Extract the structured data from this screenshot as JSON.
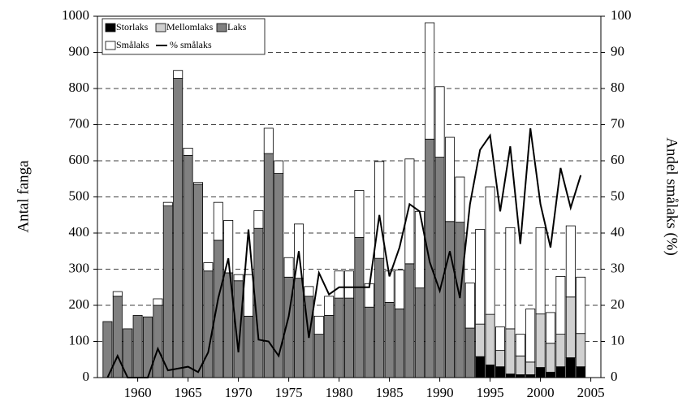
{
  "chart_data": {
    "type": "bar",
    "stacked": true,
    "y_label": "Antal fanga",
    "y2_label": "Andel smålaks (%)",
    "x": [
      1957,
      1958,
      1959,
      1960,
      1961,
      1962,
      1963,
      1964,
      1965,
      1966,
      1967,
      1968,
      1969,
      1970,
      1971,
      1972,
      1973,
      1974,
      1975,
      1976,
      1977,
      1978,
      1979,
      1980,
      1981,
      1982,
      1983,
      1984,
      1985,
      1986,
      1987,
      1988,
      1989,
      1990,
      1991,
      1992,
      1993,
      1994,
      1995,
      1996,
      1997,
      1998,
      1999,
      2000,
      2001,
      2002,
      2003,
      2004
    ],
    "series": [
      {
        "name": "Storlaks",
        "color": "#000000",
        "values": [
          null,
          null,
          null,
          null,
          null,
          null,
          null,
          null,
          null,
          null,
          null,
          null,
          null,
          null,
          null,
          null,
          null,
          null,
          null,
          null,
          null,
          null,
          null,
          null,
          null,
          null,
          null,
          null,
          null,
          null,
          null,
          null,
          null,
          null,
          null,
          null,
          null,
          58,
          35,
          30,
          10,
          8,
          8,
          28,
          15,
          30,
          55,
          30
        ]
      },
      {
        "name": "Mellomlaks",
        "color": "#d0d0d0",
        "values": [
          null,
          null,
          null,
          null,
          null,
          null,
          null,
          null,
          null,
          null,
          null,
          null,
          null,
          null,
          null,
          null,
          null,
          null,
          null,
          null,
          null,
          null,
          null,
          null,
          null,
          null,
          null,
          null,
          null,
          null,
          null,
          null,
          null,
          null,
          null,
          null,
          null,
          90,
          140,
          45,
          125,
          52,
          35,
          148,
          80,
          90,
          168,
          92
        ]
      },
      {
        "name": "Laks",
        "color": "#808080",
        "values": [
          155,
          225,
          135,
          172,
          168,
          200,
          475,
          828,
          615,
          535,
          295,
          380,
          290,
          268,
          170,
          413,
          620,
          565,
          278,
          275,
          225,
          120,
          172,
          220,
          220,
          388,
          195,
          330,
          208,
          190,
          315,
          248,
          660,
          610,
          432,
          430,
          137,
          null,
          null,
          null,
          null,
          null,
          null,
          null,
          null,
          null,
          null,
          null
        ]
      },
      {
        "name": "Smålaks",
        "color": "#ffffff",
        "values": [
          0,
          13,
          0,
          0,
          0,
          18,
          10,
          22,
          20,
          5,
          23,
          105,
          145,
          17,
          115,
          49,
          70,
          35,
          54,
          150,
          27,
          50,
          53,
          75,
          75,
          130,
          65,
          268,
          87,
          108,
          290,
          212,
          322,
          195,
          233,
          125,
          125,
          262,
          353,
          65,
          280,
          60,
          147,
          239,
          85,
          160,
          197,
          156
        ]
      },
      {
        "name": "% smålaks",
        "color": "#000000",
        "axis": "y2",
        "values": [
          0,
          6,
          0,
          0,
          0,
          8,
          2,
          2.5,
          3,
          1.5,
          7,
          22,
          33,
          7,
          41,
          10.5,
          10,
          6,
          17,
          35,
          11,
          29,
          23,
          25,
          25,
          25,
          25,
          45,
          28,
          36,
          48,
          46,
          32,
          24,
          35,
          22,
          48,
          63,
          67,
          46,
          64,
          37,
          69,
          48,
          36,
          58,
          47,
          56
        ]
      }
    ],
    "xlim": [
      1956,
      2006
    ],
    "xticks": [
      1960,
      1965,
      1970,
      1975,
      1980,
      1985,
      1990,
      1995,
      2000,
      2005
    ],
    "ylim": [
      0,
      1000
    ],
    "yticks": [
      0,
      100,
      200,
      300,
      400,
      500,
      600,
      700,
      800,
      900,
      1000
    ],
    "y2lim": [
      0,
      100
    ],
    "y2ticks": [
      0,
      10,
      20,
      30,
      40,
      50,
      60,
      70,
      80,
      90,
      100
    ],
    "grid": true,
    "legend": "top-left"
  }
}
